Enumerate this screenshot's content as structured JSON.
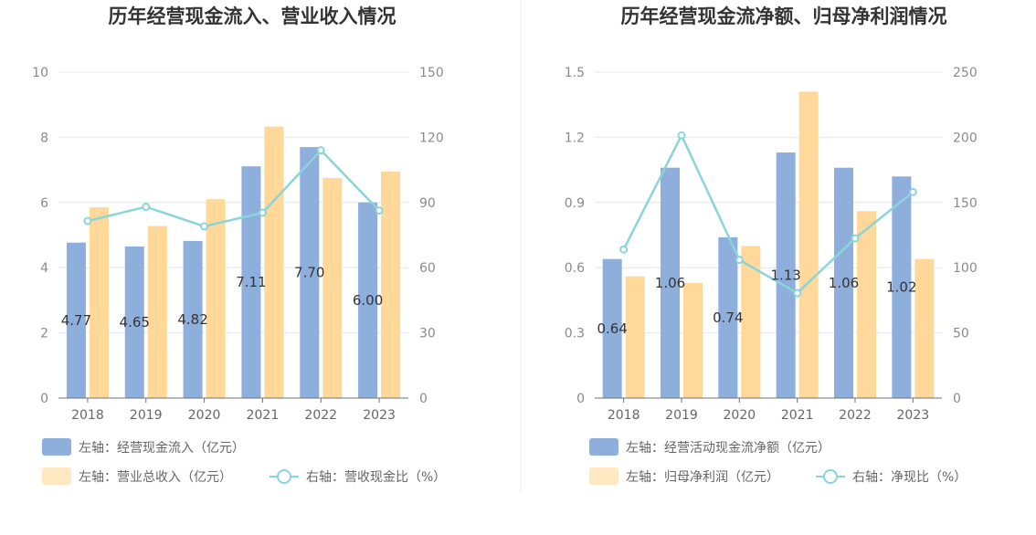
{
  "colors": {
    "bar_primary": "#8eaedb",
    "bar_secondary": "#ffd89a",
    "line": "#8ad4da",
    "grid": "#e4e6f0",
    "divider": "#ececec"
  },
  "chart_data": [
    {
      "type": "bar",
      "title": "历年经营现金流入、营业收入情况",
      "categories": [
        "2018",
        "2019",
        "2020",
        "2021",
        "2022",
        "2023"
      ],
      "left_axis": {
        "ylim": [
          0,
          10
        ],
        "ticks": [
          "0",
          "2",
          "4",
          "6",
          "8",
          "10"
        ]
      },
      "right_axis": {
        "ylim": [
          0,
          150
        ],
        "ticks": [
          "0",
          "30",
          "60",
          "90",
          "120",
          "150"
        ]
      },
      "series": [
        {
          "name": "左轴：经营现金流入（亿元）",
          "kind": "bar",
          "axis": "left",
          "values": [
            4.77,
            4.65,
            4.82,
            7.11,
            7.7,
            6.0
          ],
          "labels": [
            "4.77",
            "4.65",
            "4.82",
            "7.11",
            "7.70",
            "6.00"
          ]
        },
        {
          "name": "左轴：营业总收入（亿元）",
          "kind": "bar",
          "axis": "left",
          "values": [
            5.85,
            5.28,
            6.1,
            8.33,
            6.75,
            6.95
          ]
        },
        {
          "name": "右轴：营收现金比（%）",
          "kind": "line",
          "axis": "right",
          "values": [
            81.5,
            88.0,
            79.0,
            85.3,
            114.0,
            86.3
          ]
        }
      ],
      "legend": "bottom-left",
      "grid": true
    },
    {
      "type": "bar",
      "title": "历年经营现金流净额、归母净利润情况",
      "categories": [
        "2018",
        "2019",
        "2020",
        "2021",
        "2022",
        "2023"
      ],
      "left_axis": {
        "ylim": [
          0,
          1.5
        ],
        "ticks": [
          "0",
          "0.3",
          "0.6",
          "0.9",
          "1.2",
          "1.5"
        ]
      },
      "right_axis": {
        "ylim": [
          0,
          250
        ],
        "ticks": [
          "0",
          "50",
          "100",
          "150",
          "200",
          "250"
        ]
      },
      "series": [
        {
          "name": "左轴：经营活动现金流净额（亿元）",
          "kind": "bar",
          "axis": "left",
          "values": [
            0.64,
            1.06,
            0.74,
            1.13,
            1.06,
            1.02
          ],
          "labels": [
            "0.64",
            "1.06",
            "0.74",
            "1.13",
            "1.06",
            "1.02"
          ]
        },
        {
          "name": "左轴：归母净利润（亿元）",
          "kind": "bar",
          "axis": "left",
          "values": [
            0.56,
            0.53,
            0.7,
            1.41,
            0.86,
            0.64
          ]
        },
        {
          "name": "右轴：净现比（%）",
          "kind": "line",
          "axis": "right",
          "values": [
            114.0,
            201.5,
            106.0,
            80.5,
            122.5,
            158.0
          ]
        }
      ],
      "legend": "bottom-left",
      "grid": true
    }
  ]
}
